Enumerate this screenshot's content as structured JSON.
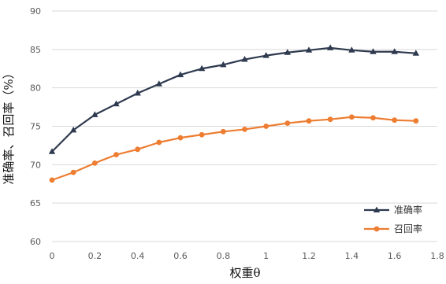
{
  "chart_data": {
    "type": "line",
    "xlabel": "权重θ",
    "ylabel": "准确率、召回率（%）",
    "xlim": [
      0,
      1.8
    ],
    "ylim": [
      60,
      90
    ],
    "x_ticks": [
      "0",
      "0.2",
      "0.4",
      "0.6",
      "0.8",
      "1",
      "1.2",
      "1.4",
      "1.6",
      "1.8"
    ],
    "y_ticks": [
      "60",
      "65",
      "70",
      "75",
      "80",
      "85",
      "90"
    ],
    "grid": "horizontal",
    "legend_position": "bottom-right",
    "x": [
      0,
      0.1,
      0.2,
      0.3,
      0.4,
      0.5,
      0.6,
      0.7,
      0.8,
      0.9,
      1.0,
      1.1,
      1.2,
      1.3,
      1.4,
      1.5,
      1.6,
      1.7
    ],
    "series": [
      {
        "name": "准确率",
        "color": "#2e3a4f",
        "marker": "triangle",
        "values": [
          71.7,
          74.5,
          76.5,
          77.9,
          79.3,
          80.5,
          81.7,
          82.5,
          83.0,
          83.7,
          84.2,
          84.6,
          84.9,
          85.2,
          84.9,
          84.7,
          84.7,
          84.5
        ]
      },
      {
        "name": "召回率",
        "color": "#ed7d31",
        "marker": "circle",
        "values": [
          68.0,
          69.0,
          70.2,
          71.3,
          72.0,
          72.9,
          73.5,
          73.9,
          74.3,
          74.6,
          75.0,
          75.4,
          75.7,
          75.9,
          76.2,
          76.1,
          75.8,
          75.7
        ]
      }
    ]
  }
}
